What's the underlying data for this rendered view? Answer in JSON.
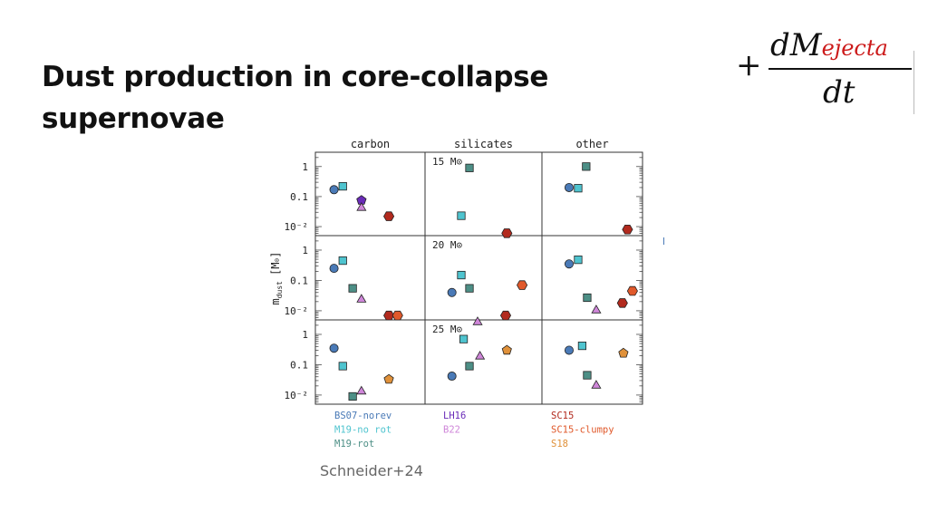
{
  "slide": {
    "title_line1": "Dust production in core-collapse",
    "title_line2": "supernovae",
    "credit": "Schneider+24",
    "equation": {
      "plus": "+",
      "numerator": "dM",
      "subscript": "ejecta",
      "denominator": "dt"
    }
  },
  "chart_data": {
    "type": "scatter",
    "yscale": "log",
    "ylim": [
      0.005,
      3
    ],
    "ylabel": "m_dust [M_⊙]",
    "ylabel_main": "m",
    "ylabel_sub": "dust",
    "ylabel_unit": "[M",
    "ylabel_unit_end": "]",
    "yticks": [
      "1",
      "0.1",
      "10⁻²"
    ],
    "columns": [
      "carbon",
      "silicates",
      "other"
    ],
    "rows": [
      "15 M⊙",
      "20 M⊙",
      "25 M⊙"
    ],
    "grid": false,
    "legend": [
      {
        "name": "BS07-norev",
        "color": "#4a7ab7",
        "marker": "circle"
      },
      {
        "name": "M19-no rot",
        "color": "#4fc4cf",
        "marker": "square"
      },
      {
        "name": "M19-rot",
        "color": "#4d8f86",
        "marker": "square"
      },
      {
        "name": "LH16",
        "color": "#6a2bb8",
        "marker": "pentagon"
      },
      {
        "name": "B22",
        "color": "#cf86d9",
        "marker": "triangle"
      },
      {
        "name": "SC15",
        "color": "#b22a1e",
        "marker": "hexagon"
      },
      {
        "name": "SC15-clumpy",
        "color": "#e0592b",
        "marker": "hexagon"
      },
      {
        "name": "S18",
        "color": "#e0913a",
        "marker": "pentagon"
      }
    ],
    "points": [
      {
        "row": 0,
        "col": 0,
        "series": "BS07-norev",
        "y": 0.17
      },
      {
        "row": 0,
        "col": 0,
        "series": "M19-no rot",
        "y": 0.22
      },
      {
        "row": 0,
        "col": 0,
        "series": "LH16",
        "y": 0.075
      },
      {
        "row": 0,
        "col": 0,
        "series": "B22",
        "y": 0.045
      },
      {
        "row": 0,
        "col": 0,
        "series": "SC15",
        "y": 0.022
      },
      {
        "row": 0,
        "col": 1,
        "series": "M19-rot",
        "y": 0.9
      },
      {
        "row": 0,
        "col": 1,
        "series": "M19-no rot",
        "y": 0.023
      },
      {
        "row": 0,
        "col": 1,
        "series": "SC15",
        "y": 0.006
      },
      {
        "row": 0,
        "col": 2,
        "series": "M19-rot",
        "y": 1.0
      },
      {
        "row": 0,
        "col": 2,
        "series": "BS07-norev",
        "y": 0.2
      },
      {
        "row": 0,
        "col": 2,
        "series": "M19-no rot",
        "y": 0.19
      },
      {
        "row": 0,
        "col": 2,
        "series": "SC15",
        "y": 0.008
      },
      {
        "row": 1,
        "col": 0,
        "series": "M19-no rot",
        "y": 0.45
      },
      {
        "row": 1,
        "col": 0,
        "series": "BS07-norev",
        "y": 0.25
      },
      {
        "row": 1,
        "col": 0,
        "series": "M19-rot",
        "y": 0.055
      },
      {
        "row": 1,
        "col": 0,
        "series": "B22",
        "y": 0.025
      },
      {
        "row": 1,
        "col": 0,
        "series": "SC15",
        "y": 0.007
      },
      {
        "row": 1,
        "col": 0,
        "series": "SC15-clumpy",
        "y": 0.007
      },
      {
        "row": 1,
        "col": 1,
        "series": "M19-no rot",
        "y": 0.15
      },
      {
        "row": 1,
        "col": 1,
        "series": "BS07-norev",
        "y": 0.04
      },
      {
        "row": 1,
        "col": 1,
        "series": "M19-rot",
        "y": 0.055
      },
      {
        "row": 1,
        "col": 1,
        "series": "SC15-clumpy",
        "y": 0.07
      },
      {
        "row": 1,
        "col": 1,
        "series": "B22",
        "y": 0.0045
      },
      {
        "row": 1,
        "col": 1,
        "series": "SC15",
        "y": 0.007
      },
      {
        "row": 1,
        "col": 2,
        "series": "BS07-norev",
        "y": 0.35
      },
      {
        "row": 1,
        "col": 2,
        "series": "M19-no rot",
        "y": 0.48
      },
      {
        "row": 1,
        "col": 2,
        "series": "M19-rot",
        "y": 0.027
      },
      {
        "row": 1,
        "col": 2,
        "series": "B22",
        "y": 0.011
      },
      {
        "row": 1,
        "col": 2,
        "series": "SC15",
        "y": 0.018
      },
      {
        "row": 1,
        "col": 2,
        "series": "SC15-clumpy",
        "y": 0.045
      },
      {
        "row": 2,
        "col": 0,
        "series": "BS07-norev",
        "y": 0.35
      },
      {
        "row": 2,
        "col": 0,
        "series": "M19-no rot",
        "y": 0.09
      },
      {
        "row": 2,
        "col": 0,
        "series": "M19-rot",
        "y": 0.009
      },
      {
        "row": 2,
        "col": 0,
        "series": "B22",
        "y": 0.014
      },
      {
        "row": 2,
        "col": 0,
        "series": "S18",
        "y": 0.033
      },
      {
        "row": 2,
        "col": 1,
        "series": "M19-no rot",
        "y": 0.7
      },
      {
        "row": 2,
        "col": 1,
        "series": "B22",
        "y": 0.2
      },
      {
        "row": 2,
        "col": 1,
        "series": "BS07-norev",
        "y": 0.042
      },
      {
        "row": 2,
        "col": 1,
        "series": "M19-rot",
        "y": 0.09
      },
      {
        "row": 2,
        "col": 1,
        "series": "S18",
        "y": 0.3
      },
      {
        "row": 2,
        "col": 2,
        "series": "BS07-norev",
        "y": 0.3
      },
      {
        "row": 2,
        "col": 2,
        "series": "M19-no rot",
        "y": 0.42
      },
      {
        "row": 2,
        "col": 2,
        "series": "M19-rot",
        "y": 0.045
      },
      {
        "row": 2,
        "col": 2,
        "series": "B22",
        "y": 0.022
      },
      {
        "row": 2,
        "col": 2,
        "series": "S18",
        "y": 0.24
      }
    ]
  }
}
